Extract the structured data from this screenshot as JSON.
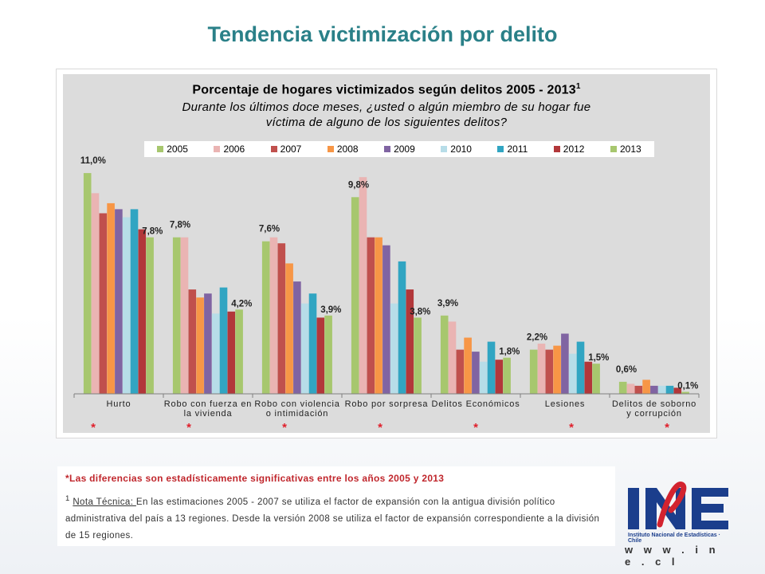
{
  "slide_title": "Tendencia victimización por delito",
  "chart_data": {
    "type": "bar",
    "title": "Porcentaje de hogares victimizados según delitos 2005 - 2013",
    "title_superscript": "1",
    "subtitle_line1": "Durante los últimos doce meses, ¿usted o algún miembro de su hogar fue",
    "subtitle_line2": "víctima de alguno de los siguientes delitos?",
    "categories": [
      "Hurto",
      "Robo con fuerza en la vivienda",
      "Robo con violencia o intimidación",
      "Robo por sorpresa",
      "Delitos Económicos",
      "Lesiones",
      "Delitos de soborno y corrupción"
    ],
    "category_lines": [
      [
        "Hurto"
      ],
      [
        "Robo con fuerza en",
        "la vivienda"
      ],
      [
        "Robo con violencia",
        "o intimidación"
      ],
      [
        "Robo por sorpresa"
      ],
      [
        "Delitos Económicos"
      ],
      [
        "Lesiones"
      ],
      [
        "Delitos de soborno",
        "y corrupción"
      ]
    ],
    "significance_marks": [
      "*",
      "*",
      "*",
      "*",
      "*",
      "*",
      "*"
    ],
    "ylim": [
      0,
      11.8
    ],
    "legend_position": "top",
    "series": [
      {
        "name": "2005",
        "color": "#a7c76e",
        "values": [
          11.0,
          7.8,
          7.6,
          9.8,
          3.9,
          2.2,
          0.6
        ]
      },
      {
        "name": "2006",
        "color": "#eab4b3",
        "values": [
          10.0,
          7.8,
          7.8,
          10.8,
          3.6,
          2.5,
          0.5
        ]
      },
      {
        "name": "2007",
        "color": "#c0504d",
        "values": [
          9.0,
          5.2,
          7.5,
          7.8,
          2.2,
          2.2,
          0.4
        ]
      },
      {
        "name": "2008",
        "color": "#f79646",
        "values": [
          9.5,
          4.8,
          6.5,
          7.8,
          2.8,
          2.4,
          0.7
        ]
      },
      {
        "name": "2009",
        "color": "#8064a2",
        "values": [
          9.2,
          5.0,
          5.6,
          7.4,
          2.1,
          3.0,
          0.4
        ]
      },
      {
        "name": "2010",
        "color": "#b7dde8",
        "values": [
          8.8,
          4.0,
          4.5,
          4.5,
          1.6,
          2.0,
          0.4
        ]
      },
      {
        "name": "2011",
        "color": "#31a5c2",
        "values": [
          9.2,
          5.3,
          5.0,
          6.6,
          2.6,
          2.6,
          0.4
        ]
      },
      {
        "name": "2012",
        "color": "#b2373a",
        "values": [
          8.2,
          4.1,
          3.8,
          5.2,
          1.7,
          1.6,
          0.3
        ]
      },
      {
        "name": "2013",
        "color": "#a7c76e",
        "values": [
          7.8,
          4.2,
          3.9,
          3.8,
          1.8,
          1.5,
          0.1
        ]
      }
    ],
    "data_labels": [
      {
        "category": 0,
        "series": 0,
        "text": "11,0%"
      },
      {
        "category": 0,
        "series": 8,
        "text": "7,8%"
      },
      {
        "category": 1,
        "series": 0,
        "text": "7,8%"
      },
      {
        "category": 1,
        "series": 8,
        "text": "4,2%"
      },
      {
        "category": 2,
        "series": 0,
        "text": "7,6%"
      },
      {
        "category": 2,
        "series": 8,
        "text": "3,9%"
      },
      {
        "category": 3,
        "series": 0,
        "text": "9,8%"
      },
      {
        "category": 3,
        "series": 8,
        "text": "3,8%"
      },
      {
        "category": 4,
        "series": 0,
        "text": "3,9%"
      },
      {
        "category": 4,
        "series": 8,
        "text": "1,8%"
      },
      {
        "category": 5,
        "series": 0,
        "text": "2,2%"
      },
      {
        "category": 5,
        "series": 8,
        "text": "1,5%"
      },
      {
        "category": 6,
        "series": 0,
        "text": "0,6%"
      },
      {
        "category": 6,
        "series": 8,
        "text": "0,1%"
      }
    ]
  },
  "notes": {
    "significance": "*Las diferencias son estadísticamente significativas entre los años 2005 y 2013",
    "tech_superscript": "1",
    "tech_label": "Nota Técnica: ",
    "tech_text": "En las estimaciones 2005 - 2007 se utiliza el factor de expansión con la antigua división político administrativa del país a 13 regiones. Desde la versión 2008 se utiliza el factor de expansión correspondiente a la división de 15 regiones."
  },
  "logo": {
    "letters": "INE",
    "subtitle": "Instituto Nacional de Estadísticas · Chile",
    "url": "w w w . i n e . c l"
  }
}
